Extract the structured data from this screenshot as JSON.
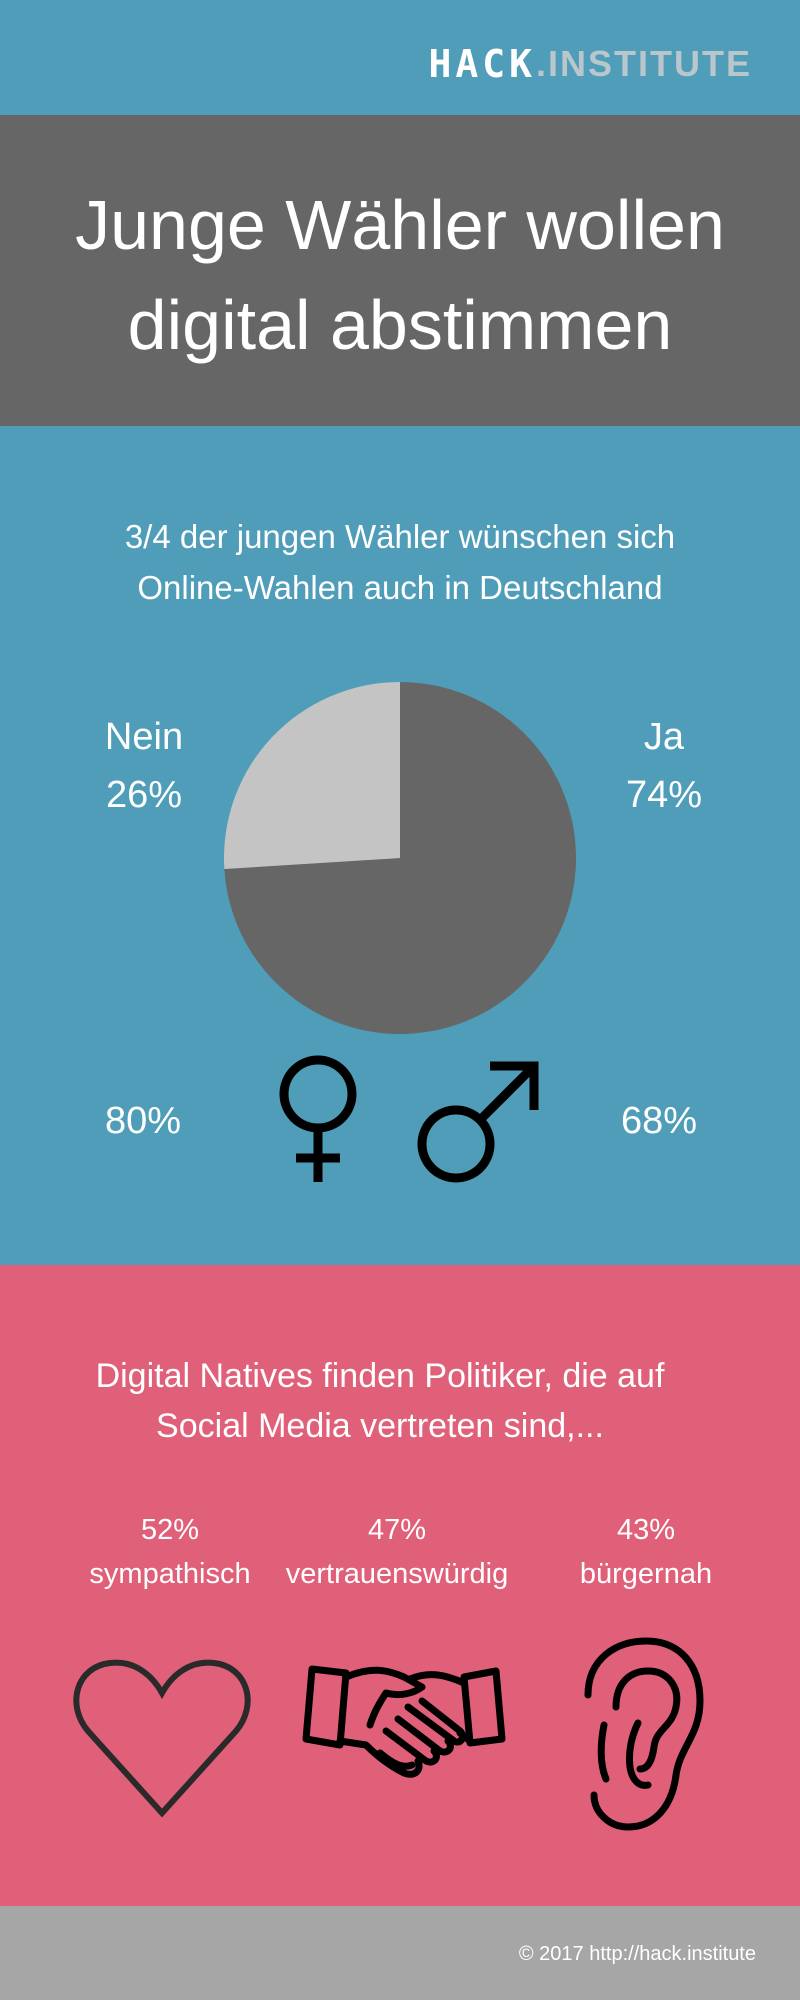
{
  "logo": {
    "hack": "HACK",
    "institute": ".INSTITUTE"
  },
  "title": {
    "line1": "Junge Wähler wollen",
    "line2": "digital abstimmen"
  },
  "online_section": {
    "subtitle_line1": "3/4 der jungen Wähler wünschen sich",
    "subtitle_line2": "Online-Wahlen auch in Deutschland",
    "nein_label": "Nein",
    "nein_value": "26%",
    "ja_label": "Ja",
    "ja_value": "74%",
    "female_value": "80%",
    "male_value": "68%",
    "icons": [
      "female-symbol-icon",
      "male-symbol-icon"
    ]
  },
  "social_section": {
    "heading_line1": "Digital Natives finden Politiker, die auf",
    "heading_line2": "Social Media vertreten sind,...",
    "stats": [
      {
        "value": "52%",
        "label": "sympathisch",
        "icon": "heart-icon"
      },
      {
        "value": "47%",
        "label": "vertrauenswürdig",
        "icon": "handshake-icon"
      },
      {
        "value": "43%",
        "label": "bürgernah",
        "icon": "ear-icon"
      }
    ]
  },
  "footer": {
    "text": "© 2017 http://hack.institute"
  },
  "colors": {
    "blue_band": "#4f9db8",
    "title_band": "#666666",
    "pink_band": "#e0607a",
    "footer_band": "#a6a6a6",
    "pie_ja": "#666666",
    "pie_nein": "#c4c4c4"
  },
  "chart_data": {
    "type": "pie",
    "categories": [
      "Ja",
      "Nein"
    ],
    "values": [
      74,
      26
    ],
    "colors": [
      "#666666",
      "#c4c4c4"
    ]
  }
}
